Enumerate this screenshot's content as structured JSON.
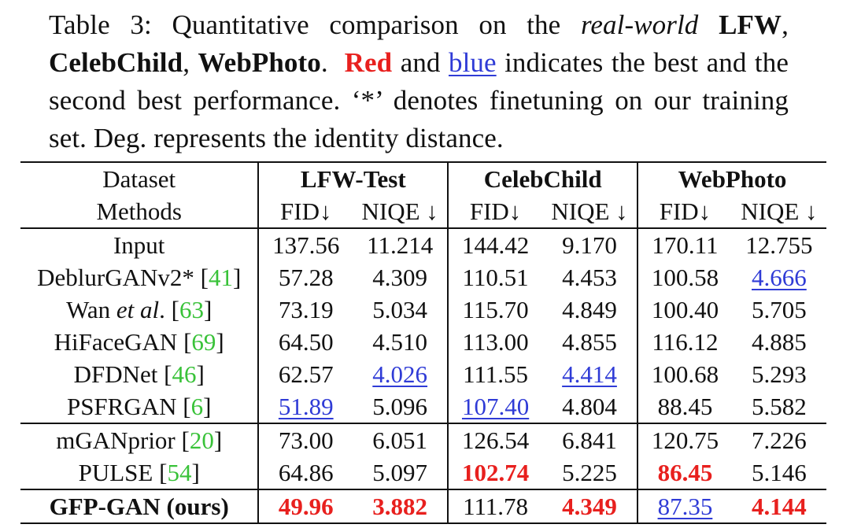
{
  "caption": {
    "label": "Table 3:",
    "text_1": "Quantitative comparison on the",
    "text_italic": "real-world",
    "ds_lfw": "LFW",
    "comma_1": ",",
    "ds_celebchild": "CelebChild",
    "comma_2": ",",
    "ds_webphoto": "WebPhoto",
    "period_1": ".",
    "red_word": "Red",
    "and_word": "and",
    "blue_word": "blue",
    "text_2": "indicates the best and the second best performance. ‘*’ denotes finetuning on our training set. Deg. represents the identity distance."
  },
  "table": {
    "header_dataset": "Dataset",
    "header_methods": "Methods",
    "datasets": [
      "LFW-Test",
      "CelebChild",
      "WebPhoto"
    ],
    "metrics": [
      "FID↓",
      "NIQE ↓",
      "FID↓",
      "NIQE ↓",
      "FID↓",
      "NIQE ↓"
    ],
    "rows": [
      {
        "name": "Input",
        "ref": "",
        "values": [
          "137.56",
          "11.214",
          "144.42",
          "9.170",
          "170.11",
          "12.755"
        ]
      },
      {
        "name": "DeblurGANv2* [",
        "ref": "41",
        "close": "]",
        "values": [
          "57.28",
          "4.309",
          "110.51",
          "4.453",
          "100.58",
          "4.666"
        ]
      },
      {
        "name": "Wan ",
        "name_italic": "et al",
        "name_after": ". [",
        "ref": "63",
        "close": "]",
        "values": [
          "73.19",
          "5.034",
          "115.70",
          "4.849",
          "100.40",
          "5.705"
        ]
      },
      {
        "name": "HiFaceGAN [",
        "ref": "69",
        "close": "]",
        "values": [
          "64.50",
          "4.510",
          "113.00",
          "4.855",
          "116.12",
          "4.885"
        ]
      },
      {
        "name": "DFDNet [",
        "ref": "46",
        "close": "]",
        "values": [
          "62.57",
          "4.026",
          "111.55",
          "4.414",
          "100.68",
          "5.293"
        ]
      },
      {
        "name": "PSFRGAN [",
        "ref": "6",
        "close": "]",
        "values": [
          "51.89",
          "5.096",
          "107.40",
          "4.804",
          "88.45",
          "5.582"
        ]
      },
      {
        "name": "mGANprior [",
        "ref": "20",
        "close": "]",
        "values": [
          "73.00",
          "6.051",
          "126.54",
          "6.841",
          "120.75",
          "7.226"
        ]
      },
      {
        "name": "PULSE [",
        "ref": "54",
        "close": "]",
        "values": [
          "64.86",
          "5.097",
          "102.74",
          "5.225",
          "86.45",
          "5.146"
        ]
      },
      {
        "name": "GFP-GAN (ours)",
        "ref": "",
        "values": [
          "49.96",
          "3.882",
          "111.78",
          "4.349",
          "87.35",
          "4.144"
        ]
      }
    ],
    "colors": {
      "best": "#e8201e",
      "second": "#2f3bd6",
      "citation": "#39c239"
    }
  }
}
